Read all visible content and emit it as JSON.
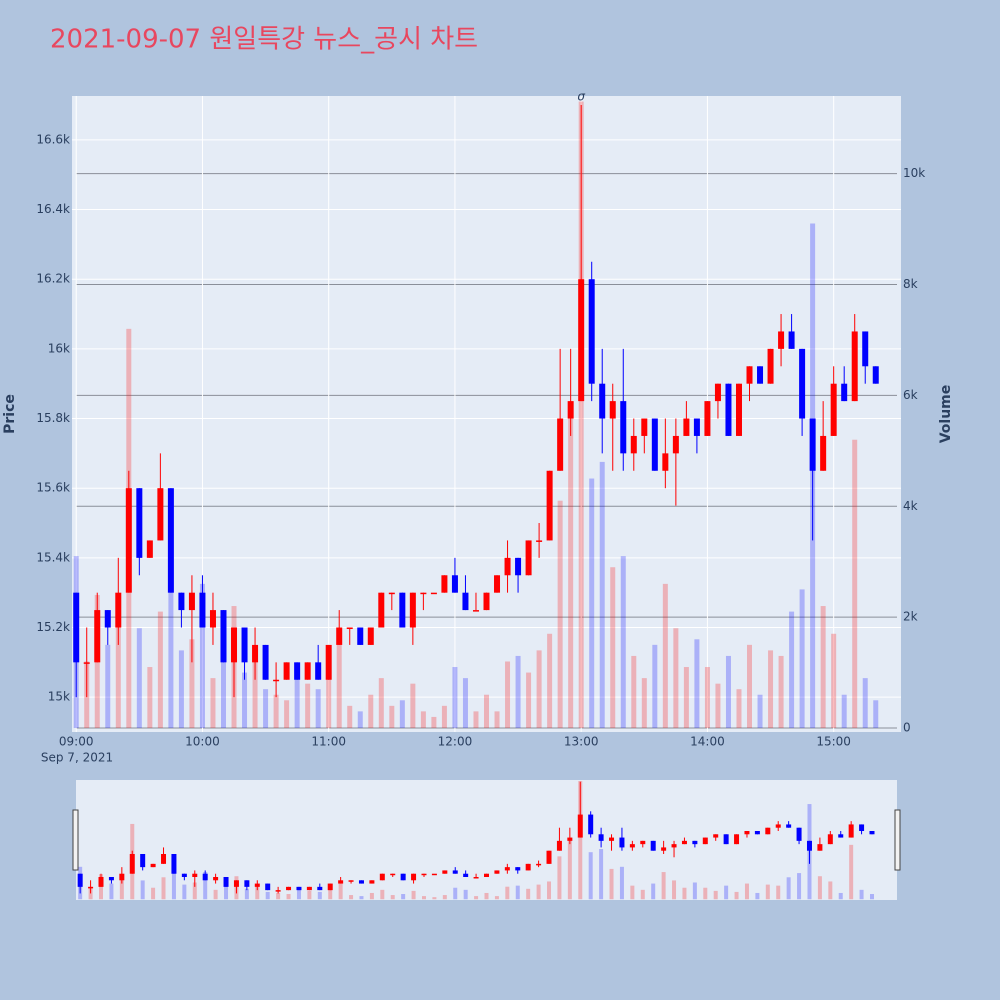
{
  "chart_data": {
    "type": "candlestick",
    "title": "2021-09-07 원일특강 뉴스_공시 차트",
    "y_title": "Price",
    "y2_title": "Volume",
    "x_date_label": "Sep 7, 2021",
    "annotation": {
      "x": "2021-09-07 13:00",
      "text": "σ"
    },
    "increasing_color": "#ff0000",
    "decreasing_color": "#0000ff",
    "xlim": [
      "2021-09-07 08:58",
      "2021-09-07 15:32"
    ],
    "xticks": [
      {
        "value": "2021-09-07 09:00",
        "label": "09:00"
      },
      {
        "value": "2021-09-07 10:00",
        "label": "10:00"
      },
      {
        "value": "2021-09-07 11:00",
        "label": "11:00"
      },
      {
        "value": "2021-09-07 12:00",
        "label": "12:00"
      },
      {
        "value": "2021-09-07 13:00",
        "label": "13:00"
      },
      {
        "value": "2021-09-07 14:00",
        "label": "14:00"
      },
      {
        "value": "2021-09-07 15:00",
        "label": "15:00"
      }
    ],
    "ylim": [
      14900,
      16726
    ],
    "yticks": [
      {
        "value": 15000,
        "label": "15k"
      },
      {
        "value": 15200,
        "label": "15.2k"
      },
      {
        "value": 15400,
        "label": "15.4k"
      },
      {
        "value": 15600,
        "label": "15.6k"
      },
      {
        "value": 15800,
        "label": "15.8k"
      },
      {
        "value": 16000,
        "label": "16k"
      },
      {
        "value": 16200,
        "label": "16.2k"
      },
      {
        "value": 16400,
        "label": "16.4k"
      },
      {
        "value": 16600,
        "label": "16.6k"
      }
    ],
    "y2lim": [
      -72,
      11400
    ],
    "y2ticks": [
      0,
      {
        "value": 2000,
        "label": "2k"
      },
      {
        "value": 4000,
        "label": "4k"
      },
      {
        "value": 6000,
        "label": "6k"
      },
      {
        "value": 8000,
        "label": "8k"
      },
      {
        "value": 10000,
        "label": "10k"
      }
    ],
    "x": [
      "2021-09-07 09:00",
      "2021-09-07 09:05",
      "2021-09-07 09:10",
      "2021-09-07 09:15",
      "2021-09-07 09:20",
      "2021-09-07 09:25",
      "2021-09-07 09:30",
      "2021-09-07 09:35",
      "2021-09-07 09:40",
      "2021-09-07 09:45",
      "2021-09-07 09:50",
      "2021-09-07 09:55",
      "2021-09-07 10:00",
      "2021-09-07 10:05",
      "2021-09-07 10:10",
      "2021-09-07 10:15",
      "2021-09-07 10:20",
      "2021-09-07 10:25",
      "2021-09-07 10:30",
      "2021-09-07 10:35",
      "2021-09-07 10:40",
      "2021-09-07 10:45",
      "2021-09-07 10:50",
      "2021-09-07 10:55",
      "2021-09-07 11:00",
      "2021-09-07 11:05",
      "2021-09-07 11:10",
      "2021-09-07 11:15",
      "2021-09-07 11:20",
      "2021-09-07 11:25",
      "2021-09-07 11:30",
      "2021-09-07 11:35",
      "2021-09-07 11:40",
      "2021-09-07 11:45",
      "2021-09-07 11:50",
      "2021-09-07 11:55",
      "2021-09-07 12:00",
      "2021-09-07 12:05",
      "2021-09-07 12:10",
      "2021-09-07 12:15",
      "2021-09-07 12:20",
      "2021-09-07 12:25",
      "2021-09-07 12:30",
      "2021-09-07 12:35",
      "2021-09-07 12:40",
      "2021-09-07 12:45",
      "2021-09-07 12:50",
      "2021-09-07 12:55",
      "2021-09-07 13:00",
      "2021-09-07 13:05",
      "2021-09-07 13:10",
      "2021-09-07 13:15",
      "2021-09-07 13:20",
      "2021-09-07 13:25",
      "2021-09-07 13:30",
      "2021-09-07 13:35",
      "2021-09-07 13:40",
      "2021-09-07 13:45",
      "2021-09-07 13:50",
      "2021-09-07 13:55",
      "2021-09-07 14:00",
      "2021-09-07 14:05",
      "2021-09-07 14:10",
      "2021-09-07 14:15",
      "2021-09-07 14:20",
      "2021-09-07 14:25",
      "2021-09-07 14:30",
      "2021-09-07 14:35",
      "2021-09-07 14:40",
      "2021-09-07 14:45",
      "2021-09-07 14:50",
      "2021-09-07 14:55",
      "2021-09-07 15:00",
      "2021-09-07 15:05",
      "2021-09-07 15:10",
      "2021-09-07 15:15",
      "2021-09-07 15:20"
    ],
    "open": [
      15300,
      15100,
      15100,
      15250,
      15200,
      15300,
      15600,
      15400,
      15450,
      15600,
      15300,
      15250,
      15300,
      15200,
      15250,
      15100,
      15200,
      15100,
      15150,
      15050,
      15050,
      15100,
      15050,
      15100,
      15050,
      15150,
      15200,
      15200,
      15150,
      15200,
      15300,
      15300,
      15200,
      15300,
      15300,
      15300,
      15350,
      15300,
      15250,
      15250,
      15300,
      15350,
      15400,
      15350,
      15450,
      15450,
      15650,
      15800,
      15850,
      16200,
      15900,
      15800,
      15850,
      15700,
      15750,
      15800,
      15650,
      15700,
      15750,
      15800,
      15750,
      15850,
      15900,
      15750,
      15900,
      15950,
      15900,
      16000,
      16050,
      16000,
      15800,
      15650,
      15750,
      15900,
      15850,
      16050,
      15950
    ],
    "high": [
      15300,
      15200,
      15300,
      15250,
      15400,
      15650,
      15600,
      15450,
      15700,
      15600,
      15300,
      15350,
      15350,
      15300,
      15250,
      15200,
      15200,
      15200,
      15150,
      15100,
      15100,
      15100,
      15100,
      15150,
      15150,
      15250,
      15200,
      15200,
      15200,
      15300,
      15300,
      15300,
      15300,
      15300,
      15300,
      15350,
      15400,
      15350,
      15300,
      15300,
      15350,
      15450,
      15400,
      15450,
      15500,
      15650,
      16000,
      16000,
      16700,
      16250,
      16000,
      15900,
      16000,
      15800,
      15800,
      15800,
      15800,
      15800,
      15850,
      15800,
      15850,
      15900,
      15900,
      15900,
      15950,
      15950,
      16000,
      16100,
      16100,
      16000,
      15800,
      15850,
      15950,
      15950,
      16100,
      16050,
      15950
    ],
    "low": [
      15000,
      15000,
      15100,
      15150,
      15150,
      15300,
      15350,
      15400,
      15450,
      15300,
      15200,
      15100,
      15200,
      15150,
      15100,
      15000,
      15050,
      15050,
      15050,
      15000,
      15050,
      15050,
      15050,
      15050,
      15050,
      15150,
      15150,
      15150,
      15150,
      15200,
      15250,
      15200,
      15150,
      15250,
      15300,
      15300,
      15300,
      15250,
      15250,
      15250,
      15300,
      15300,
      15300,
      15350,
      15400,
      15450,
      15650,
      15750,
      15850,
      15850,
      15700,
      15650,
      15650,
      15650,
      15700,
      15650,
      15600,
      15550,
      15750,
      15700,
      15750,
      15800,
      15750,
      15750,
      15850,
      15900,
      15900,
      15950,
      16000,
      15750,
      15450,
      15650,
      15750,
      15850,
      15850,
      15900,
      15900
    ],
    "close": [
      15100,
      15100,
      15250,
      15200,
      15300,
      15600,
      15400,
      15450,
      15600,
      15300,
      15250,
      15300,
      15200,
      15250,
      15100,
      15200,
      15100,
      15150,
      15050,
      15050,
      15100,
      15050,
      15100,
      15050,
      15150,
      15200,
      15200,
      15150,
      15200,
      15300,
      15300,
      15200,
      15300,
      15300,
      15300,
      15350,
      15300,
      15250,
      15250,
      15300,
      15350,
      15400,
      15350,
      15450,
      15450,
      15650,
      15800,
      15850,
      16200,
      15900,
      15800,
      15850,
      15700,
      15750,
      15800,
      15650,
      15700,
      15750,
      15800,
      15750,
      15850,
      15900,
      15750,
      15900,
      15950,
      15900,
      16000,
      16050,
      16000,
      15800,
      15650,
      15750,
      15900,
      15850,
      16050,
      15950,
      15900
    ],
    "volume": [
      3100,
      1200,
      2400,
      1500,
      2200,
      7200,
      1800,
      1100,
      2100,
      3400,
      1400,
      1600,
      2600,
      900,
      1300,
      2200,
      1000,
      1400,
      700,
      600,
      500,
      1100,
      800,
      700,
      1200,
      1500,
      400,
      300,
      600,
      900,
      400,
      500,
      800,
      300,
      200,
      400,
      1100,
      900,
      300,
      600,
      300,
      1200,
      1300,
      1000,
      1400,
      1700,
      4100,
      5600,
      11300,
      4500,
      4800,
      2900,
      3100,
      1300,
      900,
      1500,
      2600,
      1800,
      1100,
      1600,
      1100,
      800,
      1300,
      700,
      1500,
      600,
      1400,
      1300,
      2100,
      2500,
      9100,
      2200,
      1700,
      600,
      5200,
      900,
      500
    ]
  }
}
